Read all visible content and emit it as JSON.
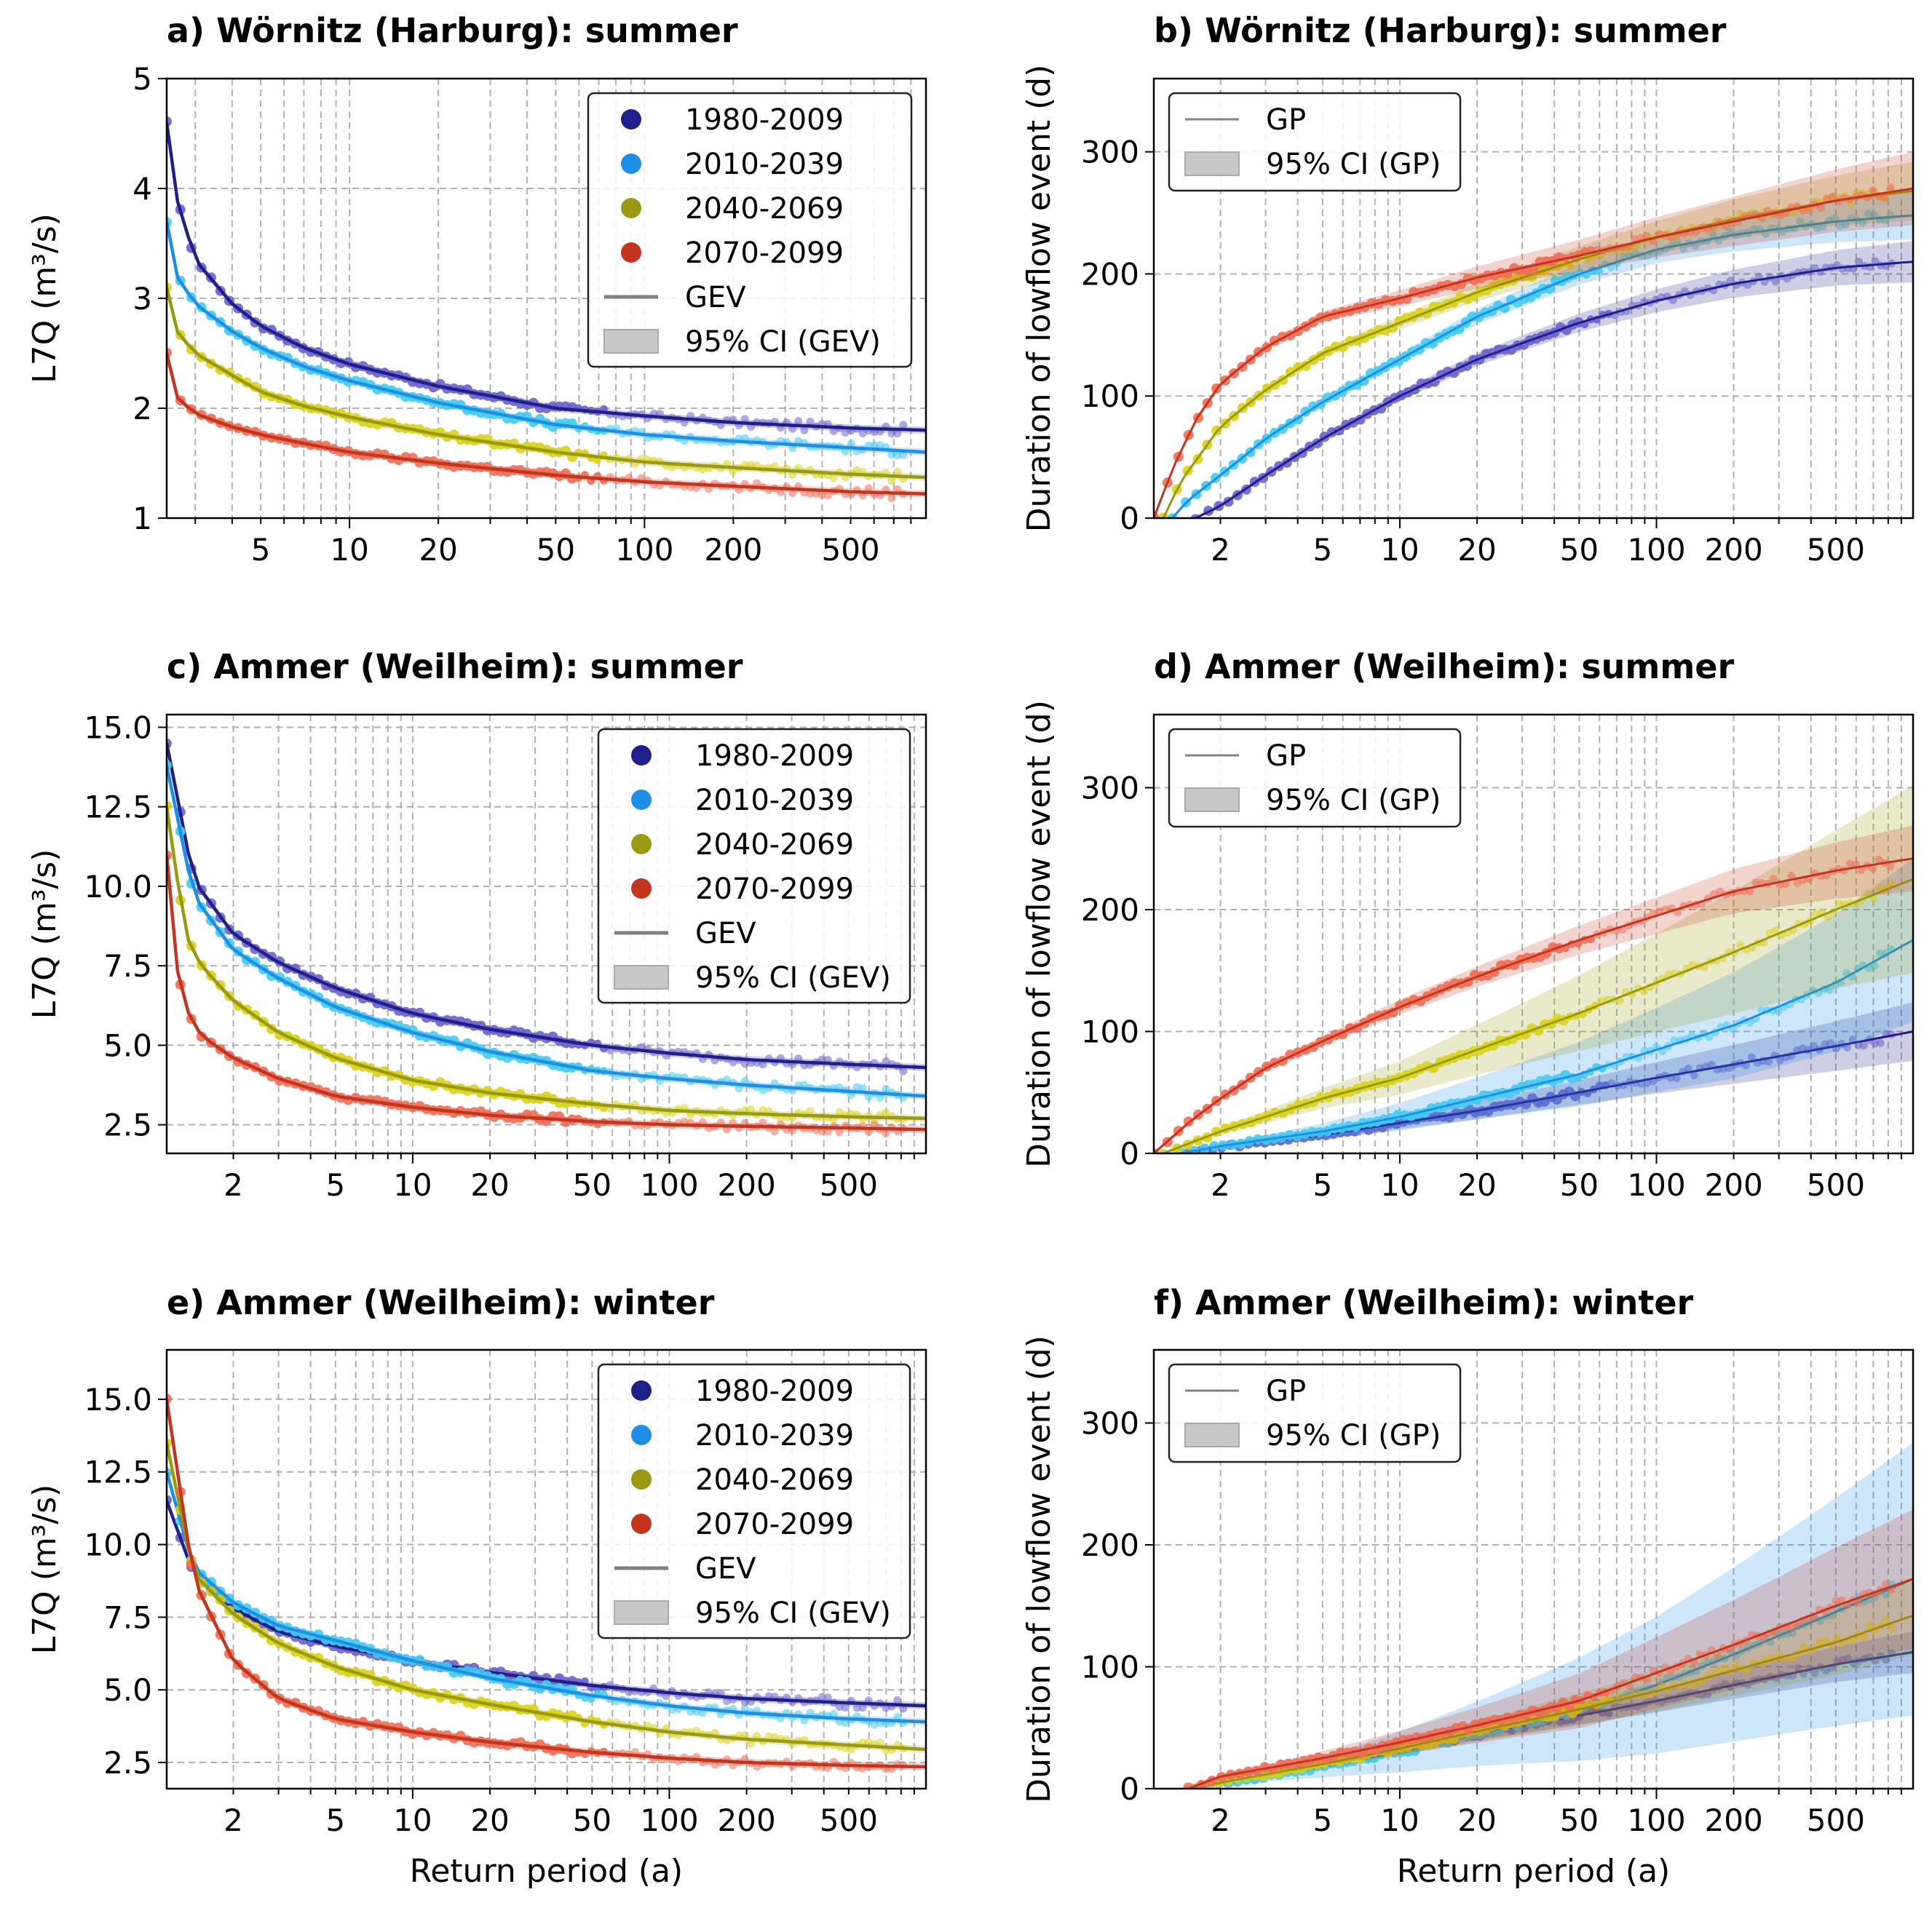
{
  "figure": {
    "xlabel": "Return period (a)"
  },
  "legend_labels": {
    "periods": [
      "1980-2009",
      "2010-2039",
      "2040-2069",
      "2070-2099"
    ],
    "gev": "GEV",
    "ci_gev_a": "95% CI  (GEV)",
    "ci_gev": "95% CI (GEV)",
    "gp": "GP",
    "ci_gp": "95% CI (GP)"
  },
  "colors": {
    "1980-2009": "#1f1f8a",
    "2010-2039": "#1e8fe6",
    "2040-2069": "#9a9a12",
    "2070-2099": "#c43520",
    "points_1980-2009": "#6a62cc",
    "points_2010-2039": "#42cbf0",
    "points_2040-2069": "#d9d21a",
    "points_2070-2099": "#ee6d55",
    "legend_line": "#808080",
    "ci_fill": "#c8c8c8"
  },
  "chart_data": [
    {
      "id": "a",
      "type": "line",
      "title": "a) Wörnitz (Harburg): summer",
      "xlabel": "",
      "ylabel": "L7Q (m³/s)",
      "xscale": "log",
      "xlim": [
        2.4,
        900
      ],
      "ylim": [
        1,
        5
      ],
      "yticks": [
        1,
        2,
        3,
        4,
        5
      ],
      "ytick_labels": [
        "1",
        "2",
        "3",
        "4",
        "5"
      ],
      "xticks": [
        5,
        10,
        20,
        50,
        100,
        200,
        500
      ],
      "xtick_labels": [
        "5",
        "10",
        "20",
        "50",
        "100",
        "200",
        "500"
      ],
      "grid": true,
      "legend": "top-right",
      "series": [
        {
          "name": "1980-2009",
          "x": [
            2.4,
            2.6,
            3,
            4,
            5,
            7,
            10,
            20,
            50,
            100,
            200,
            500,
            900
          ],
          "y": [
            4.6,
            3.9,
            3.35,
            2.95,
            2.75,
            2.55,
            2.4,
            2.2,
            2.0,
            1.93,
            1.87,
            1.82,
            1.8
          ]
        },
        {
          "name": "2010-2039",
          "x": [
            2.4,
            2.6,
            3,
            4,
            5,
            7,
            10,
            20,
            50,
            100,
            200,
            500,
            900
          ],
          "y": [
            3.7,
            3.2,
            2.95,
            2.7,
            2.55,
            2.38,
            2.25,
            2.05,
            1.85,
            1.76,
            1.7,
            1.64,
            1.6
          ]
        },
        {
          "name": "2040-2069",
          "x": [
            2.4,
            2.6,
            3,
            4,
            5,
            7,
            10,
            20,
            50,
            100,
            200,
            500,
            900
          ],
          "y": [
            3.1,
            2.7,
            2.5,
            2.3,
            2.15,
            2.02,
            1.92,
            1.76,
            1.6,
            1.51,
            1.46,
            1.4,
            1.37
          ]
        },
        {
          "name": "2070-2099",
          "x": [
            2.4,
            2.6,
            3,
            4,
            5,
            7,
            10,
            20,
            50,
            100,
            200,
            500,
            900
          ],
          "y": [
            2.5,
            2.1,
            1.95,
            1.83,
            1.76,
            1.68,
            1.6,
            1.5,
            1.39,
            1.33,
            1.29,
            1.24,
            1.22
          ]
        }
      ]
    },
    {
      "id": "b",
      "type": "line",
      "title": "b) Wörnitz (Harburg): summer",
      "xlabel": "",
      "ylabel": "Duration of lowflow event (d)",
      "xscale": "log",
      "xlim": [
        1.1,
        1000
      ],
      "ylim": [
        0,
        360
      ],
      "yticks": [
        0,
        100,
        200,
        300
      ],
      "ytick_labels": [
        "0",
        "100",
        "200",
        "300"
      ],
      "xticks": [
        2,
        5,
        10,
        20,
        50,
        100,
        200,
        500
      ],
      "xtick_labels": [
        "2",
        "5",
        "10",
        "20",
        "50",
        "100",
        "200",
        "500"
      ],
      "grid": true,
      "legend": "top-left",
      "ci_halfwidth_max": [
        15,
        18,
        22,
        28
      ],
      "series": [
        {
          "name": "1980-2009",
          "x": [
            1.6,
            2,
            3,
            5,
            10,
            20,
            50,
            100,
            200,
            500,
            1000
          ],
          "y": [
            0,
            10,
            35,
            65,
            100,
            130,
            160,
            178,
            192,
            205,
            210
          ]
        },
        {
          "name": "2010-2039",
          "x": [
            1.3,
            1.5,
            2,
            3,
            5,
            10,
            20,
            50,
            100,
            200,
            500,
            1000
          ],
          "y": [
            0,
            15,
            35,
            65,
            95,
            130,
            165,
            200,
            220,
            232,
            243,
            248
          ]
        },
        {
          "name": "2040-2069",
          "x": [
            1.2,
            1.4,
            2,
            3,
            5,
            10,
            20,
            50,
            100,
            200,
            500,
            1000
          ],
          "y": [
            0,
            30,
            75,
            105,
            135,
            160,
            185,
            212,
            230,
            245,
            260,
            268
          ]
        },
        {
          "name": "2070-2099",
          "x": [
            1.1,
            1.3,
            1.6,
            2,
            3,
            5,
            10,
            20,
            50,
            100,
            200,
            500,
            1000
          ],
          "y": [
            0,
            40,
            80,
            110,
            140,
            165,
            180,
            197,
            215,
            230,
            243,
            260,
            270
          ]
        }
      ]
    },
    {
      "id": "c",
      "type": "line",
      "title": "c) Ammer (Weilheim): summer",
      "xlabel": "",
      "ylabel": "L7Q (m³/s)",
      "xscale": "log",
      "xlim": [
        1.1,
        1000
      ],
      "ylim": [
        1.6,
        15.4
      ],
      "yticks": [
        2.5,
        5,
        7.5,
        10,
        12.5,
        15
      ],
      "ytick_labels": [
        "2.5",
        "5.0",
        "7.5",
        "10.0",
        "12.5",
        "15.0"
      ],
      "xticks": [
        2,
        5,
        10,
        20,
        50,
        100,
        200,
        500
      ],
      "xtick_labels": [
        "2",
        "5",
        "10",
        "20",
        "50",
        "100",
        "200",
        "500"
      ],
      "grid": true,
      "legend": "top-right",
      "series": [
        {
          "name": "1980-2009",
          "x": [
            1.1,
            1.4,
            2,
            3,
            5,
            10,
            20,
            50,
            100,
            200,
            500,
            1000
          ],
          "y": [
            14.5,
            10.2,
            8.5,
            7.6,
            6.8,
            6.0,
            5.5,
            5.0,
            4.75,
            4.55,
            4.4,
            4.3
          ]
        },
        {
          "name": "2010-2039",
          "x": [
            1.1,
            1.4,
            2,
            3,
            5,
            10,
            20,
            50,
            100,
            200,
            500,
            1000
          ],
          "y": [
            13.8,
            9.7,
            8.0,
            7.1,
            6.2,
            5.4,
            4.8,
            4.2,
            3.95,
            3.75,
            3.55,
            3.4
          ]
        },
        {
          "name": "2040-2069",
          "x": [
            1.1,
            1.3,
            1.5,
            2,
            3,
            5,
            10,
            20,
            50,
            100,
            200,
            500,
            1000
          ],
          "y": [
            12.5,
            8.5,
            7.5,
            6.4,
            5.4,
            4.6,
            3.9,
            3.5,
            3.15,
            2.95,
            2.85,
            2.75,
            2.7
          ]
        },
        {
          "name": "2070-2099",
          "x": [
            1.1,
            1.2,
            1.3,
            1.5,
            2,
            3,
            5,
            10,
            20,
            50,
            100,
            200,
            500,
            1000
          ],
          "y": [
            11,
            7.5,
            6.2,
            5.3,
            4.6,
            3.95,
            3.4,
            3.05,
            2.8,
            2.6,
            2.5,
            2.45,
            2.4,
            2.35
          ]
        }
      ]
    },
    {
      "id": "d",
      "type": "line",
      "title": "d) Ammer (Weilheim): summer",
      "xlabel": "",
      "ylabel": "Duration of lowflow event (d)",
      "xscale": "log",
      "xlim": [
        1.1,
        1000
      ],
      "ylim": [
        0,
        360
      ],
      "yticks": [
        0,
        100,
        200,
        300
      ],
      "ytick_labels": [
        "0",
        "100",
        "200",
        "300"
      ],
      "xticks": [
        2,
        5,
        10,
        20,
        50,
        100,
        200,
        500
      ],
      "xtick_labels": [
        "2",
        "5",
        "10",
        "20",
        "50",
        "100",
        "200",
        "500"
      ],
      "grid": true,
      "legend": "top-left",
      "ci_halfwidth_max": [
        22,
        65,
        75,
        25
      ],
      "series": [
        {
          "name": "1980-2009",
          "x": [
            1.5,
            2,
            5,
            10,
            20,
            50,
            100,
            200,
            500,
            1000
          ],
          "y": [
            0,
            5,
            15,
            25,
            35,
            50,
            62,
            73,
            88,
            100
          ]
        },
        {
          "name": "2010-2039",
          "x": [
            1.4,
            2,
            5,
            10,
            20,
            50,
            100,
            200,
            500,
            1000
          ],
          "y": [
            0,
            6,
            18,
            30,
            45,
            65,
            85,
            105,
            140,
            175
          ]
        },
        {
          "name": "2040-2069",
          "x": [
            1.2,
            1.5,
            2,
            3,
            5,
            10,
            20,
            50,
            100,
            200,
            500,
            1000
          ],
          "y": [
            0,
            8,
            18,
            30,
            45,
            62,
            85,
            115,
            140,
            165,
            200,
            225
          ]
        },
        {
          "name": "2070-2099",
          "x": [
            1.1,
            1.5,
            2,
            3,
            5,
            10,
            20,
            50,
            100,
            200,
            500,
            1000
          ],
          "y": [
            0,
            25,
            45,
            70,
            92,
            120,
            145,
            175,
            195,
            215,
            232,
            242
          ]
        }
      ]
    },
    {
      "id": "e",
      "type": "line",
      "title": "e) Ammer (Weilheim): winter",
      "xlabel": "Return period (a)",
      "ylabel": "L7Q (m³/s)",
      "xscale": "log",
      "xlim": [
        1.1,
        1000
      ],
      "ylim": [
        1.6,
        16.7
      ],
      "yticks": [
        2.5,
        5,
        7.5,
        10,
        12.5,
        15
      ],
      "ytick_labels": [
        "2.5",
        "5.0",
        "7.5",
        "10.0",
        "12.5",
        "15.0"
      ],
      "xticks": [
        2,
        5,
        10,
        20,
        50,
        100,
        200,
        500
      ],
      "xtick_labels": [
        "2",
        "5",
        "10",
        "20",
        "50",
        "100",
        "200",
        "500"
      ],
      "grid": true,
      "legend": "top-right",
      "series": [
        {
          "name": "1980-2009",
          "x": [
            1.1,
            1.4,
            2,
            3,
            5,
            10,
            20,
            50,
            100,
            200,
            500,
            1000
          ],
          "y": [
            11.5,
            9.0,
            7.8,
            7.0,
            6.5,
            6.0,
            5.6,
            5.15,
            4.9,
            4.7,
            4.55,
            4.45
          ]
        },
        {
          "name": "2010-2039",
          "x": [
            1.1,
            1.4,
            2,
            3,
            5,
            10,
            20,
            50,
            100,
            200,
            500,
            1000
          ],
          "y": [
            12.5,
            9.2,
            8.0,
            7.2,
            6.7,
            6.0,
            5.4,
            4.8,
            4.45,
            4.2,
            4.0,
            3.9
          ]
        },
        {
          "name": "2040-2069",
          "x": [
            1.1,
            1.4,
            2,
            3,
            5,
            10,
            20,
            50,
            100,
            200,
            500,
            1000
          ],
          "y": [
            13.5,
            9.0,
            7.6,
            6.6,
            5.8,
            5.0,
            4.5,
            3.9,
            3.55,
            3.3,
            3.1,
            2.95
          ]
        },
        {
          "name": "2070-2099",
          "x": [
            1.1,
            1.4,
            2,
            3,
            5,
            10,
            20,
            50,
            100,
            200,
            500,
            1000
          ],
          "y": [
            15.0,
            8.8,
            6.0,
            4.7,
            4.0,
            3.55,
            3.2,
            2.85,
            2.65,
            2.5,
            2.4,
            2.35
          ]
        }
      ]
    },
    {
      "id": "f",
      "type": "line",
      "title": "f) Ammer (Weilheim): winter",
      "xlabel": "Return period (a)",
      "ylabel": "Duration of lowflow event (d)",
      "xscale": "log",
      "xlim": [
        1.1,
        1000
      ],
      "ylim": [
        0,
        360
      ],
      "yticks": [
        0,
        100,
        200,
        300
      ],
      "ytick_labels": [
        "0",
        "100",
        "200",
        "300"
      ],
      "xticks": [
        2,
        5,
        10,
        20,
        50,
        100,
        200,
        500
      ],
      "xtick_labels": [
        "2",
        "5",
        "10",
        "20",
        "50",
        "100",
        "200",
        "500"
      ],
      "grid": true,
      "legend": "top-left",
      "ci_halfwidth_max": [
        15,
        110,
        30,
        55
      ],
      "series": [
        {
          "name": "1980-2009",
          "x": [
            1.6,
            2,
            5,
            10,
            20,
            50,
            100,
            200,
            500,
            1000
          ],
          "y": [
            0,
            6,
            20,
            33,
            45,
            60,
            72,
            85,
            102,
            112
          ]
        },
        {
          "name": "2010-2039",
          "x": [
            1.6,
            2,
            5,
            10,
            20,
            50,
            100,
            200,
            500,
            1000
          ],
          "y": [
            0,
            4,
            18,
            30,
            45,
            65,
            85,
            110,
            145,
            172
          ]
        },
        {
          "name": "2040-2069",
          "x": [
            1.6,
            2,
            5,
            10,
            20,
            50,
            100,
            200,
            500,
            1000
          ],
          "y": [
            0,
            5,
            20,
            33,
            47,
            65,
            80,
            97,
            120,
            142
          ]
        },
        {
          "name": "2070-2099",
          "x": [
            1.5,
            2,
            5,
            10,
            20,
            50,
            100,
            200,
            500,
            1000
          ],
          "y": [
            0,
            10,
            25,
            38,
            52,
            72,
            95,
            118,
            150,
            172
          ]
        }
      ]
    }
  ]
}
